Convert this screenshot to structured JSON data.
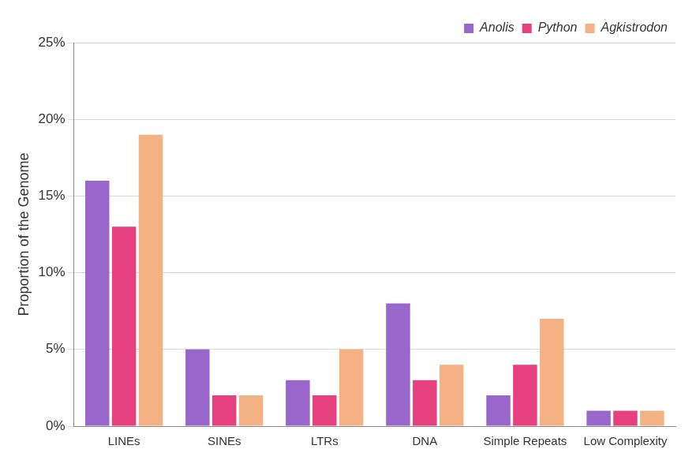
{
  "chart_data": {
    "type": "bar",
    "y_label": "Proportion of the Genome",
    "categories": [
      "LINEs",
      "SINEs",
      "LTRs",
      "DNA",
      "Simple Repeats",
      "Low Complexity"
    ],
    "series": [
      {
        "name": "Anolis",
        "color": "#9966cc",
        "values": [
          16,
          5,
          3,
          8,
          2,
          1
        ]
      },
      {
        "name": "Python",
        "color": "#e6407f",
        "values": [
          13,
          2,
          2,
          3,
          4,
          1
        ]
      },
      {
        "name": "Agkistrodon",
        "color": "#f4b183",
        "values": [
          19,
          2,
          5,
          4,
          7,
          1
        ]
      }
    ],
    "ylim": [
      0,
      25
    ],
    "yticks": [
      {
        "value": 0,
        "label": "0%"
      },
      {
        "value": 5,
        "label": "5%"
      },
      {
        "value": 10,
        "label": "10%"
      },
      {
        "value": 15,
        "label": "15%"
      },
      {
        "value": 20,
        "label": "20%"
      },
      {
        "value": 25,
        "label": "25%"
      }
    ],
    "grid": true,
    "legend": "top-right"
  }
}
